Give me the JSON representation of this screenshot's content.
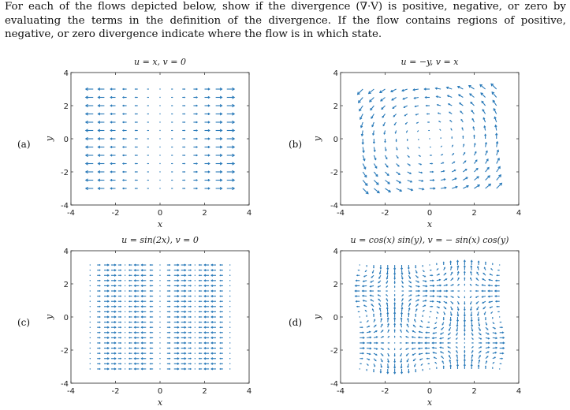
{
  "intro": {
    "text": "For each of the flows depicted below, show if the divergence (∇·V) is positive, negative, or zero by evaluating the terms in the definition of the divergence. If the flow contains regions of positive, negative, or zero divergence indicate where the flow is in which state."
  },
  "colors": {
    "arrow": "#2a7ab9",
    "axis": "#222222"
  },
  "panels": [
    {
      "id": "a",
      "label": "(a)",
      "title": "u = x,  v = 0",
      "xlabel": "x",
      "ylabel": "y"
    },
    {
      "id": "b",
      "label": "(b)",
      "title": "u = −y,  v = x",
      "xlabel": "x",
      "ylabel": "y"
    },
    {
      "id": "c",
      "label": "(c)",
      "title": "u = sin(2x),  v = 0",
      "xlabel": "x",
      "ylabel": "y"
    },
    {
      "id": "d",
      "label": "(d)",
      "title": "u = cos(x) sin(y),  v = − sin(x) cos(y)",
      "xlabel": "x",
      "ylabel": "y"
    }
  ],
  "chart_data": [
    {
      "type": "quiver",
      "panel": "a",
      "field": "u = x, v = 0",
      "xlim": [
        -4,
        4
      ],
      "ylim": [
        -4,
        4
      ],
      "xticks": [
        "-4",
        "-2",
        "0",
        "2",
        "4"
      ],
      "yticks": [
        "-4",
        "-2",
        "0",
        "2",
        "4"
      ],
      "grid_x": [
        -3,
        3
      ],
      "grid_y": [
        -3,
        3
      ],
      "grid_n": 13
    },
    {
      "type": "quiver",
      "panel": "b",
      "field": "u = -y, v = x",
      "xlim": [
        -4,
        4
      ],
      "ylim": [
        -4,
        4
      ],
      "xticks": [
        "-4",
        "-2",
        "0",
        "2",
        "4"
      ],
      "yticks": [
        "-4",
        "-2",
        "0",
        "2",
        "4"
      ],
      "grid_x": [
        -3,
        3
      ],
      "grid_y": [
        -3,
        3
      ],
      "grid_n": 13
    },
    {
      "type": "quiver",
      "panel": "c",
      "field": "u = sin(2x), v = 0",
      "xlim": [
        -4,
        4
      ],
      "ylim": [
        -4,
        4
      ],
      "xticks": [
        "-4",
        "-2",
        "0",
        "2",
        "4"
      ],
      "yticks": [
        "-4",
        "-2",
        "0",
        "2",
        "4"
      ],
      "grid_x": [
        -3.14,
        3.14
      ],
      "grid_y": [
        -3.14,
        3.14
      ],
      "grid_n": 21
    },
    {
      "type": "quiver",
      "panel": "d",
      "field": "u = cos(x) sin(y), v = -sin(x) cos(y)",
      "xlim": [
        -4,
        4
      ],
      "ylim": [
        -4,
        4
      ],
      "xticks": [
        "-4",
        "-2",
        "0",
        "2",
        "4"
      ],
      "yticks": [
        "-4",
        "-2",
        "0",
        "2",
        "4"
      ],
      "grid_x": [
        -3.14,
        3.14
      ],
      "grid_y": [
        -3.14,
        3.14
      ],
      "grid_n": 21
    }
  ]
}
